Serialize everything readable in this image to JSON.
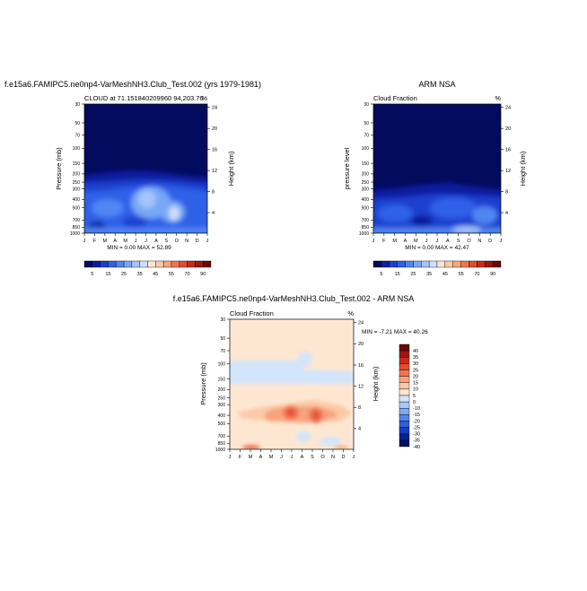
{
  "chart_data": [
    {
      "type": "heatmap",
      "title": "f.e15a6.FAMIPC5.ne0np4-VarMeshNH3.Club_Test.002 (yrs 1979-1981)",
      "left_label": "CLOUD at 71.151840209960 94,203.76",
      "right_label": "%",
      "ylabel": "Pressure (mb)",
      "y2label": "Height (km)",
      "x_ticks": [
        "J",
        "F",
        "M",
        "A",
        "M",
        "J",
        "J",
        "A",
        "S",
        "O",
        "N",
        "D",
        "J"
      ],
      "y_ticks": [
        "30",
        "50",
        "70",
        "100",
        "150",
        "200",
        "250",
        "300",
        "400",
        "500",
        "700",
        "850",
        "1000"
      ],
      "y2_ticks": [
        "24",
        "20",
        "16",
        "12",
        "8",
        "4"
      ],
      "stats": "MIN =   0.00 MAX =  52.89",
      "colorbar_labels": [
        "5",
        "15",
        "25",
        "35",
        "45",
        "55",
        "70",
        "90"
      ]
    },
    {
      "type": "heatmap",
      "title": "ARM NSA",
      "left_label": "Cloud Fraction",
      "right_label": "%",
      "ylabel": "pressure level",
      "y2label": "Height (km)",
      "x_ticks": [
        "J",
        "F",
        "M",
        "A",
        "M",
        "J",
        "J",
        "A",
        "S",
        "O",
        "N",
        "D",
        "J"
      ],
      "y_ticks": [
        "30",
        "50",
        "70",
        "100",
        "150",
        "200",
        "250",
        "300",
        "400",
        "500",
        "700",
        "850",
        "1000"
      ],
      "y2_ticks": [
        "24",
        "20",
        "16",
        "12",
        "8",
        "4"
      ],
      "stats": "MIN =   0.00 MAX =  42.47",
      "colorbar_labels": [
        "5",
        "15",
        "25",
        "35",
        "45",
        "55",
        "70",
        "90"
      ]
    },
    {
      "type": "heatmap",
      "title": "f.e15a6.FAMIPC5.ne0np4-VarMeshNH3.Club_Test.002 - ARM NSA",
      "left_label": "Cloud Fraction",
      "right_label": "%",
      "ylabel": "Pressure (mb)",
      "y2label": "Height (km)",
      "x_ticks": [
        "J",
        "F",
        "M",
        "A",
        "M",
        "J",
        "J",
        "A",
        "S",
        "O",
        "N",
        "D",
        "J"
      ],
      "y_ticks": [
        "30",
        "50",
        "70",
        "100",
        "150",
        "200",
        "250",
        "300",
        "400",
        "500",
        "700",
        "850",
        "1000"
      ],
      "y2_ticks": [
        "24",
        "20",
        "16",
        "12",
        "8",
        "4"
      ],
      "stats": "MIN =  -7.21 MAX =  40.26",
      "colorbar_labels": [
        "40",
        "35",
        "30",
        "25",
        "20",
        "15",
        "10",
        "5",
        "0",
        "-10",
        "-15",
        "-20",
        "-25",
        "-30",
        "-35",
        "-40"
      ]
    }
  ],
  "colors": {
    "seq_scale": [
      "#030b5e",
      "#0a1fa0",
      "#1d3fcf",
      "#2f60e8",
      "#4f86f3",
      "#78a7f7",
      "#a4c4fa",
      "#cde0fd",
      "#fde7d2",
      "#fbc9a6",
      "#f7a37d",
      "#ef7552",
      "#e44b2f",
      "#c92a19",
      "#9c150e",
      "#6a0805"
    ],
    "diff_scale": [
      "#6a0805",
      "#9c150e",
      "#c92a19",
      "#e44b2f",
      "#ef7552",
      "#f7a37d",
      "#fbc9a6",
      "#fde7d2",
      "#d2e5fb",
      "#a9c8f8",
      "#7ea9f3",
      "#5585ea",
      "#305fd9",
      "#1a3db8",
      "#0b2190",
      "#04105e"
    ]
  }
}
